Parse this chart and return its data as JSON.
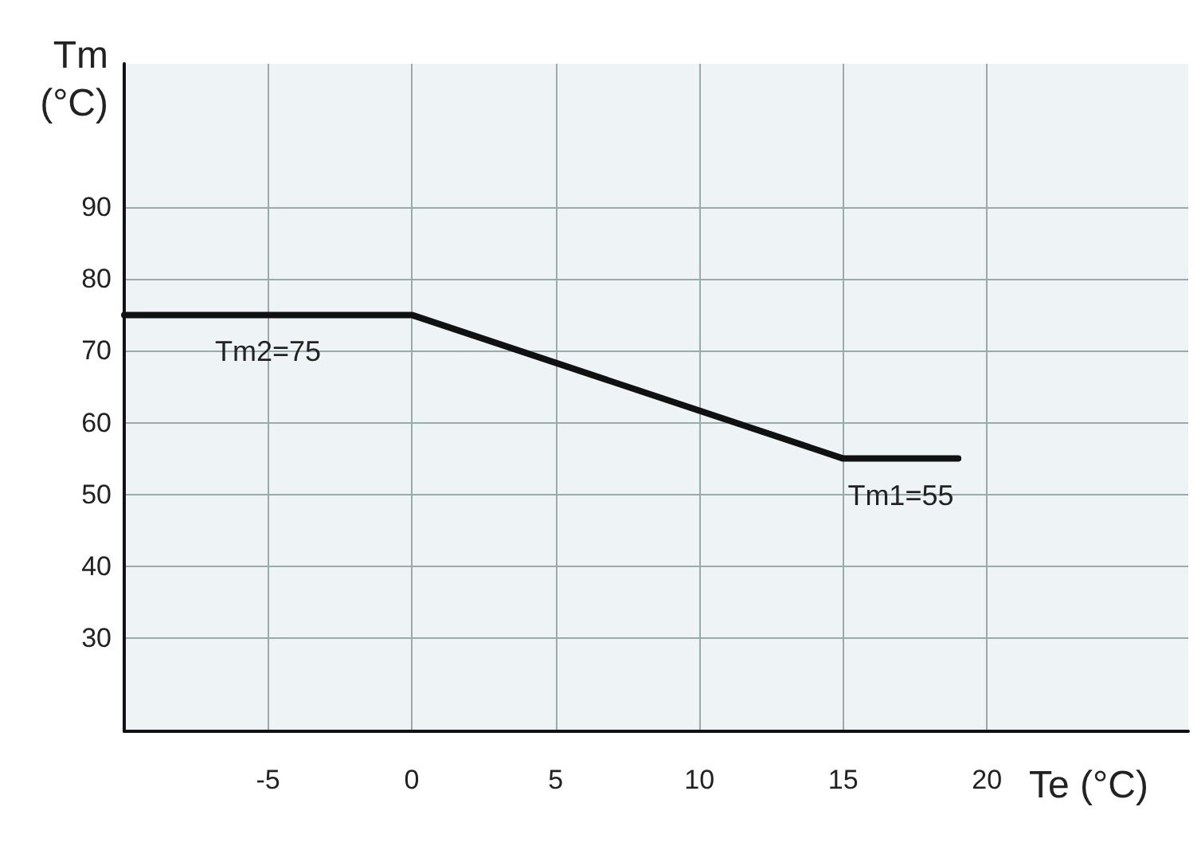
{
  "chart_data": {
    "type": "line",
    "xlabel": "Te (°C)",
    "ylabel": "Tm (°C)",
    "x": [
      -10,
      0,
      15,
      19
    ],
    "series": [
      {
        "color": "#111111",
        "values": [
          75,
          75,
          55,
          55
        ]
      }
    ],
    "xlim": [
      -10,
      27
    ],
    "xticks": [
      -5,
      0,
      5,
      10,
      15,
      20
    ],
    "ylim": [
      17,
      110
    ],
    "yticks": [
      30,
      40,
      50,
      60,
      70,
      80,
      90
    ],
    "grid": true,
    "marker": "none",
    "line_style": "solid",
    "annotations": [
      {
        "text": "Tm2=75",
        "x": -5,
        "y": 75
      },
      {
        "text": "Tm1=55",
        "x": 17,
        "y": 55
      }
    ]
  }
}
